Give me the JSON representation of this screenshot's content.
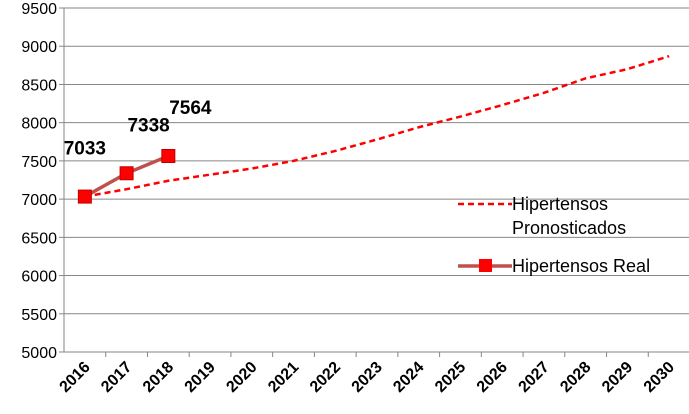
{
  "chart_data": {
    "type": "line",
    "categories": [
      "2016",
      "2017",
      "2018",
      "2019",
      "2020",
      "2021",
      "2022",
      "2023",
      "2024",
      "2025",
      "2026",
      "2027",
      "2028",
      "2029",
      "2030"
    ],
    "series": [
      {
        "name": "Hipertensos Pronosticados",
        "color": "#ff0000",
        "dashed": true,
        "values": [
          7033,
          7130,
          7240,
          7320,
          7400,
          7500,
          7630,
          7780,
          7940,
          8080,
          8230,
          8390,
          8580,
          8700,
          8870
        ]
      },
      {
        "name": "Hipertensos Real",
        "color": "#c0504d",
        "marker_color": "#ff0000",
        "show_values": true,
        "values": [
          7033,
          7338,
          7564,
          null,
          null,
          null,
          null,
          null,
          null,
          null,
          null,
          null,
          null,
          null,
          null
        ]
      }
    ],
    "ylim": [
      5000,
      9500
    ],
    "yticks": [
      5000,
      5500,
      6000,
      6500,
      7000,
      7500,
      8000,
      8500,
      9000,
      9500
    ],
    "grid": true,
    "legend": "right"
  }
}
